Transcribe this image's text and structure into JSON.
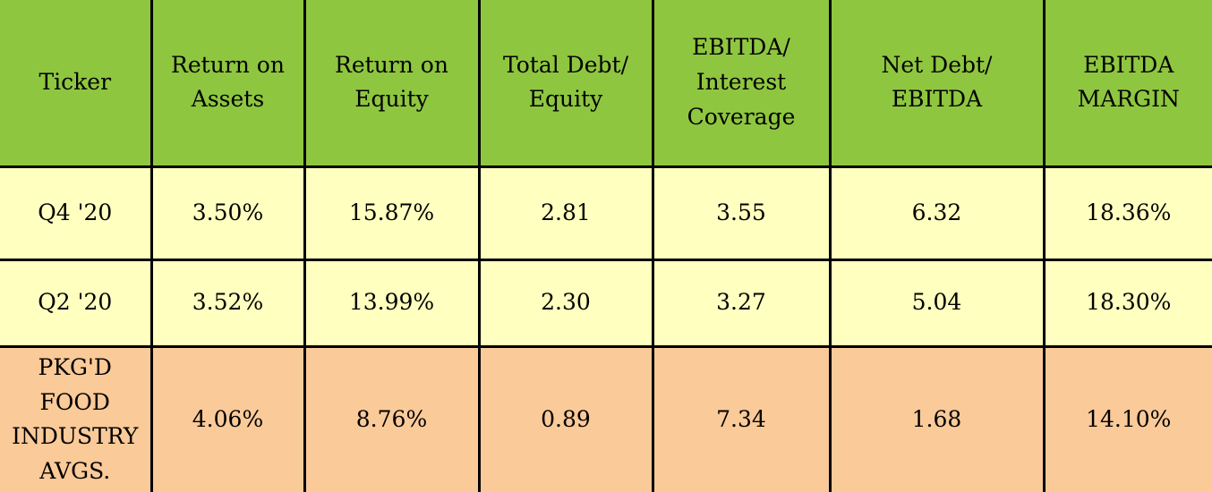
{
  "colors": {
    "header_bg": "#8FC640",
    "quarter_row_bg": "#FFFFC0",
    "industry_row_bg": "#FACA99",
    "border": "#000000",
    "text": "#000000"
  },
  "table": {
    "header": {
      "cells": [
        "Ticker",
        "Return on\nAssets",
        "Return on\nEquity",
        "Total Debt/\nEquity",
        "EBITDA/\nInterest\nCoverage",
        "Net Debt/\nEBITDA",
        "EBITDA\nMARGIN"
      ]
    },
    "rows": [
      {
        "label": "Q4 '20",
        "values": [
          "3.50%",
          "15.87%",
          "2.81",
          "3.55",
          "6.32",
          "18.36%"
        ]
      },
      {
        "label": "Q2 '20",
        "values": [
          "3.52%",
          "13.99%",
          "2.30",
          "3.27",
          "5.04",
          "18.30%"
        ]
      },
      {
        "label": "PKG'D\nFOOD\nINDUSTRY\nAVGS.",
        "values": [
          "4.06%",
          "8.76%",
          "0.89",
          "7.34",
          "1.68",
          "14.10%"
        ]
      }
    ]
  },
  "chart_data": {
    "type": "table",
    "columns": [
      "Ticker",
      "Return on Assets",
      "Return on Equity",
      "Total Debt/Equity",
      "EBITDA/Interest Coverage",
      "Net Debt/EBITDA",
      "EBITDA MARGIN"
    ],
    "rows": [
      [
        "Q4 '20",
        "3.50%",
        "15.87%",
        "2.81",
        "3.55",
        "6.32",
        "18.36%"
      ],
      [
        "Q2 '20",
        "3.52%",
        "13.99%",
        "2.30",
        "3.27",
        "5.04",
        "18.30%"
      ],
      [
        "PKG'D FOOD INDUSTRY AVGS.",
        "4.06%",
        "8.76%",
        "0.89",
        "7.34",
        "1.68",
        "14.10%"
      ]
    ]
  }
}
